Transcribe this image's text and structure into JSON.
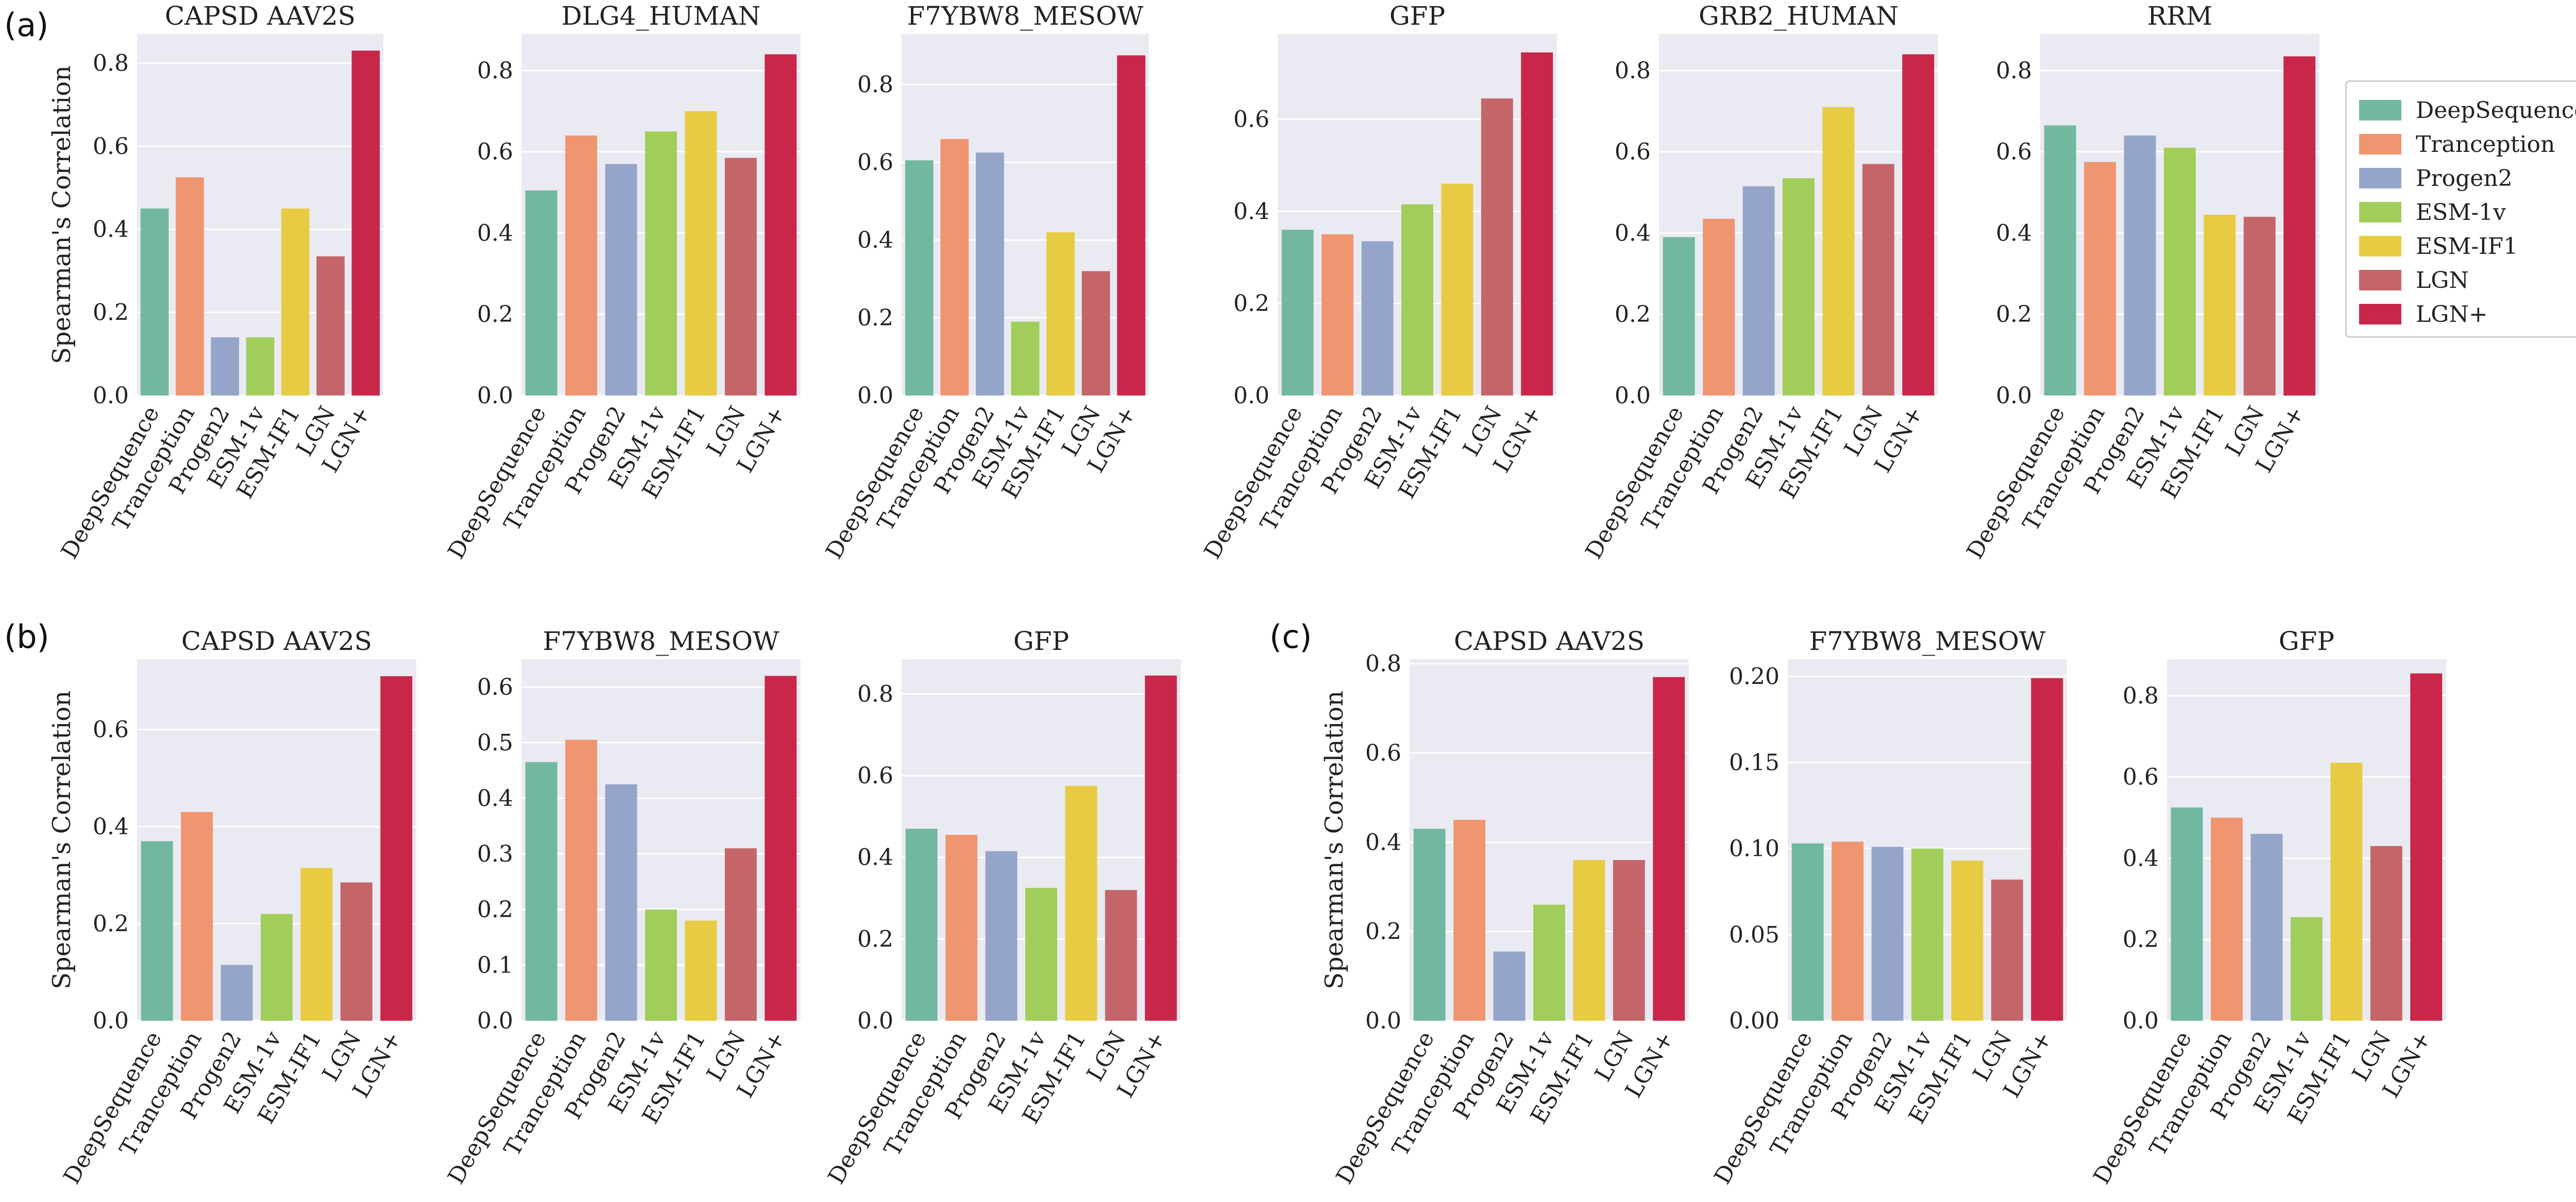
{
  "panel_labels": [
    "(a)",
    "(b)",
    "(c)"
  ],
  "legend": {
    "items": [
      {
        "label": "DeepSequence",
        "color": "#72b8a0"
      },
      {
        "label": "Tranception",
        "color": "#ef9570"
      },
      {
        "label": "Progen2",
        "color": "#95a5c9"
      },
      {
        "label": "ESM-1v",
        "color": "#a1ce5a"
      },
      {
        "label": "ESM-IF1",
        "color": "#e7cb42"
      },
      {
        "label": "LGN",
        "color": "#c46669"
      },
      {
        "label": "LGN+",
        "color": "#c82749"
      }
    ]
  },
  "chart_data": [
    {
      "type": "bar",
      "panel": "(a)",
      "title": "CAPSD AAV2S",
      "ylabel": "Spearman's Correlation",
      "ylim": [
        0,
        0.87
      ],
      "yticks": [
        "0.0",
        "0.2",
        "0.4",
        "0.6",
        "0.8"
      ],
      "categories": [
        "DeepSequence",
        "Tranception",
        "Progen2",
        "ESM-1v",
        "ESM-IF1",
        "LGN",
        "LGN+"
      ],
      "values": [
        0.45,
        0.525,
        0.14,
        0.14,
        0.45,
        0.335,
        0.83
      ]
    },
    {
      "type": "bar",
      "panel": "(a)",
      "title": "DLG4_HUMAN",
      "ylabel": "",
      "ylim": [
        0,
        0.89
      ],
      "yticks": [
        "0.0",
        "0.2",
        "0.4",
        "0.6",
        "0.8"
      ],
      "categories": [
        "DeepSequence",
        "Tranception",
        "Progen2",
        "ESM-1v",
        "ESM-IF1",
        "LGN",
        "LGN+"
      ],
      "values": [
        0.505,
        0.64,
        0.57,
        0.65,
        0.7,
        0.585,
        0.84
      ]
    },
    {
      "type": "bar",
      "panel": "(a)",
      "title": "F7YBW8_MESOW",
      "ylabel": "",
      "ylim": [
        0,
        0.93
      ],
      "yticks": [
        "0.0",
        "0.2",
        "0.4",
        "0.6",
        "0.8"
      ],
      "categories": [
        "DeepSequence",
        "Tranception",
        "Progen2",
        "ESM-1v",
        "ESM-IF1",
        "LGN",
        "LGN+"
      ],
      "values": [
        0.605,
        0.66,
        0.625,
        0.19,
        0.42,
        0.32,
        0.875
      ]
    },
    {
      "type": "bar",
      "panel": "(a)",
      "title": "GFP",
      "ylabel": "",
      "ylim": [
        0,
        0.785
      ],
      "yticks": [
        "0.0",
        "0.2",
        "0.4",
        "0.6"
      ],
      "categories": [
        "DeepSequence",
        "Tranception",
        "Progen2",
        "ESM-1v",
        "ESM-IF1",
        "LGN",
        "LGN+"
      ],
      "values": [
        0.36,
        0.35,
        0.335,
        0.415,
        0.46,
        0.645,
        0.745
      ]
    },
    {
      "type": "bar",
      "panel": "(a)",
      "title": "GRB2_HUMAN",
      "ylabel": "",
      "ylim": [
        0,
        0.89
      ],
      "yticks": [
        "0.0",
        "0.2",
        "0.4",
        "0.6",
        "0.8"
      ],
      "categories": [
        "DeepSequence",
        "Tranception",
        "Progen2",
        "ESM-1v",
        "ESM-IF1",
        "LGN",
        "LGN+"
      ],
      "values": [
        0.39,
        0.435,
        0.515,
        0.535,
        0.71,
        0.57,
        0.84
      ]
    },
    {
      "type": "bar",
      "panel": "(a)",
      "title": "RRM",
      "ylabel": "",
      "ylim": [
        0,
        0.89
      ],
      "yticks": [
        "0.0",
        "0.2",
        "0.4",
        "0.6",
        "0.8"
      ],
      "categories": [
        "DeepSequence",
        "Tranception",
        "Progen2",
        "ESM-1v",
        "ESM-IF1",
        "LGN",
        "LGN+"
      ],
      "values": [
        0.665,
        0.575,
        0.64,
        0.61,
        0.445,
        0.44,
        0.835
      ]
    },
    {
      "type": "bar",
      "panel": "(b)",
      "title": "CAPSD AAV2S",
      "ylabel": "Spearman's Correlation",
      "ylim": [
        0,
        0.745
      ],
      "yticks": [
        "0.0",
        "0.2",
        "0.4",
        "0.6"
      ],
      "categories": [
        "DeepSequence",
        "Tranception",
        "Progen2",
        "ESM-1v",
        "ESM-IF1",
        "LGN",
        "LGN+"
      ],
      "values": [
        0.37,
        0.43,
        0.115,
        0.22,
        0.315,
        0.285,
        0.71
      ]
    },
    {
      "type": "bar",
      "panel": "(b)",
      "title": "F7YBW8_MESOW",
      "ylabel": "",
      "ylim": [
        0,
        0.65
      ],
      "yticks": [
        "0.0",
        "0.1",
        "0.2",
        "0.3",
        "0.4",
        "0.5",
        "0.6"
      ],
      "categories": [
        "DeepSequence",
        "Tranception",
        "Progen2",
        "ESM-1v",
        "ESM-IF1",
        "LGN",
        "LGN+"
      ],
      "values": [
        0.465,
        0.505,
        0.425,
        0.2,
        0.18,
        0.31,
        0.62
      ]
    },
    {
      "type": "bar",
      "panel": "(b)",
      "title": "GFP",
      "ylabel": "",
      "ylim": [
        0,
        0.885
      ],
      "yticks": [
        "0.0",
        "0.2",
        "0.4",
        "0.6",
        "0.8"
      ],
      "categories": [
        "DeepSequence",
        "Tranception",
        "Progen2",
        "ESM-1v",
        "ESM-IF1",
        "LGN",
        "LGN+"
      ],
      "values": [
        0.47,
        0.455,
        0.415,
        0.325,
        0.575,
        0.32,
        0.845
      ]
    },
    {
      "type": "bar",
      "panel": "(c)",
      "title": "CAPSD AAV2S",
      "ylabel": "Spearman's Correlation",
      "ylim": [
        0,
        0.81
      ],
      "yticks": [
        "0.0",
        "0.2",
        "0.4",
        "0.6",
        "0.8"
      ],
      "categories": [
        "DeepSequence",
        "Tranception",
        "Progen2",
        "ESM-1v",
        "ESM-IF1",
        "LGN",
        "LGN+"
      ],
      "values": [
        0.43,
        0.45,
        0.155,
        0.26,
        0.36,
        0.36,
        0.77
      ]
    },
    {
      "type": "bar",
      "panel": "(c)",
      "title": "F7YBW8_MESOW",
      "ylabel": "",
      "ylim": [
        0,
        0.21
      ],
      "yticks": [
        "0.00",
        "0.05",
        "0.10",
        "0.15",
        "0.20"
      ],
      "categories": [
        "DeepSequence",
        "Tranception",
        "Progen2",
        "ESM-1v",
        "ESM-IF1",
        "LGN",
        "LGN+"
      ],
      "values": [
        0.103,
        0.104,
        0.101,
        0.1,
        0.093,
        0.082,
        0.199
      ]
    },
    {
      "type": "bar",
      "panel": "(c)",
      "title": "GFP",
      "ylabel": "",
      "ylim": [
        0,
        0.89
      ],
      "yticks": [
        "0.0",
        "0.2",
        "0.4",
        "0.6",
        "0.8"
      ],
      "categories": [
        "DeepSequence",
        "Tranception",
        "Progen2",
        "ESM-1v",
        "ESM-IF1",
        "LGN",
        "LGN+"
      ],
      "values": [
        0.525,
        0.5,
        0.46,
        0.255,
        0.635,
        0.43,
        0.855
      ]
    }
  ]
}
